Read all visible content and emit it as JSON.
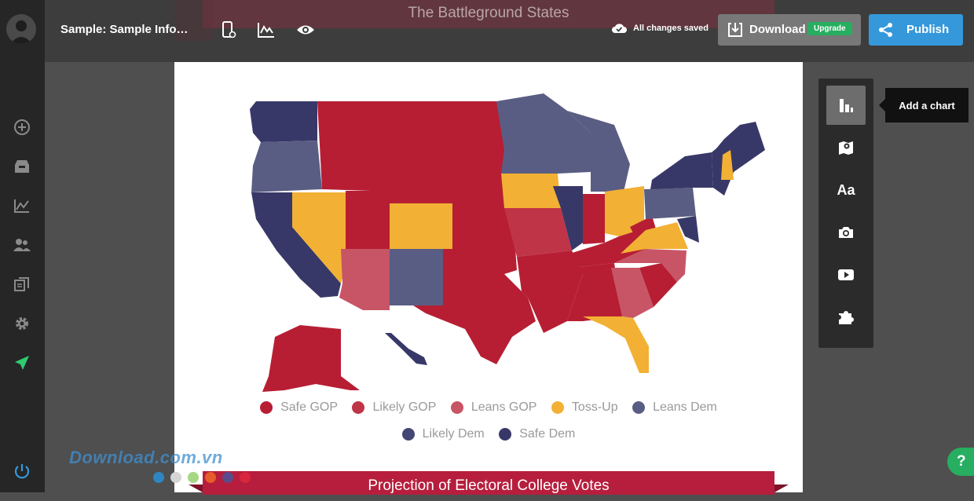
{
  "app": {
    "project_title": "Sample: Sample Info…",
    "save_status": "All changes saved",
    "download_label": "Download",
    "upgrade_label": "Upgrade",
    "publish_label": "Publish",
    "help_label": "?"
  },
  "sidebar": {
    "icons": [
      "user-avatar",
      "add-circle-icon",
      "inbox-icon",
      "chart-icon",
      "team-icon",
      "duplicate-icon",
      "gear-icon",
      "rocket-icon",
      "power-icon"
    ]
  },
  "toolbar": {
    "icons": [
      "mobile-settings-icon",
      "chart-activity-icon",
      "eye-icon"
    ]
  },
  "canvas": {
    "header_title": "The Battleground States",
    "banner_title": "Projection of Electoral College Votes",
    "legend": [
      {
        "label": "Safe GOP",
        "color": "#b71e33"
      },
      {
        "label": "Likely GOP",
        "color": "#c03447"
      },
      {
        "label": "Leans GOP",
        "color": "#c75566"
      },
      {
        "label": "Toss-Up",
        "color": "#f2b134"
      },
      {
        "label": "Leans Dem",
        "color": "#5a5d83"
      },
      {
        "label": "Likely Dem",
        "color": "#444676"
      },
      {
        "label": "Safe Dem",
        "color": "#383868"
      }
    ]
  },
  "tools": {
    "items": [
      "chart-tool-icon",
      "map-tool-icon",
      "text-tool-icon",
      "photo-tool-icon",
      "video-tool-icon",
      "widget-tool-icon"
    ],
    "text_tool_glyph": "Aa",
    "tooltip": "Add a chart"
  },
  "watermark": {
    "text": "Download.com.vn",
    "dot_colors": [
      "#2e86c1",
      "#d5d5d5",
      "#a6d785",
      "#e45d2a",
      "#5b4b8a",
      "#d7263d"
    ]
  },
  "colors": {
    "safe_gop": "#b71e33",
    "likely_gop": "#c03447",
    "leans_gop": "#c75566",
    "toss_up": "#f2b134",
    "leans_dem": "#5a5d83",
    "likely_dem": "#444676",
    "safe_dem": "#383868",
    "accent_green": "#27ae60",
    "accent_blue": "#3498db"
  }
}
